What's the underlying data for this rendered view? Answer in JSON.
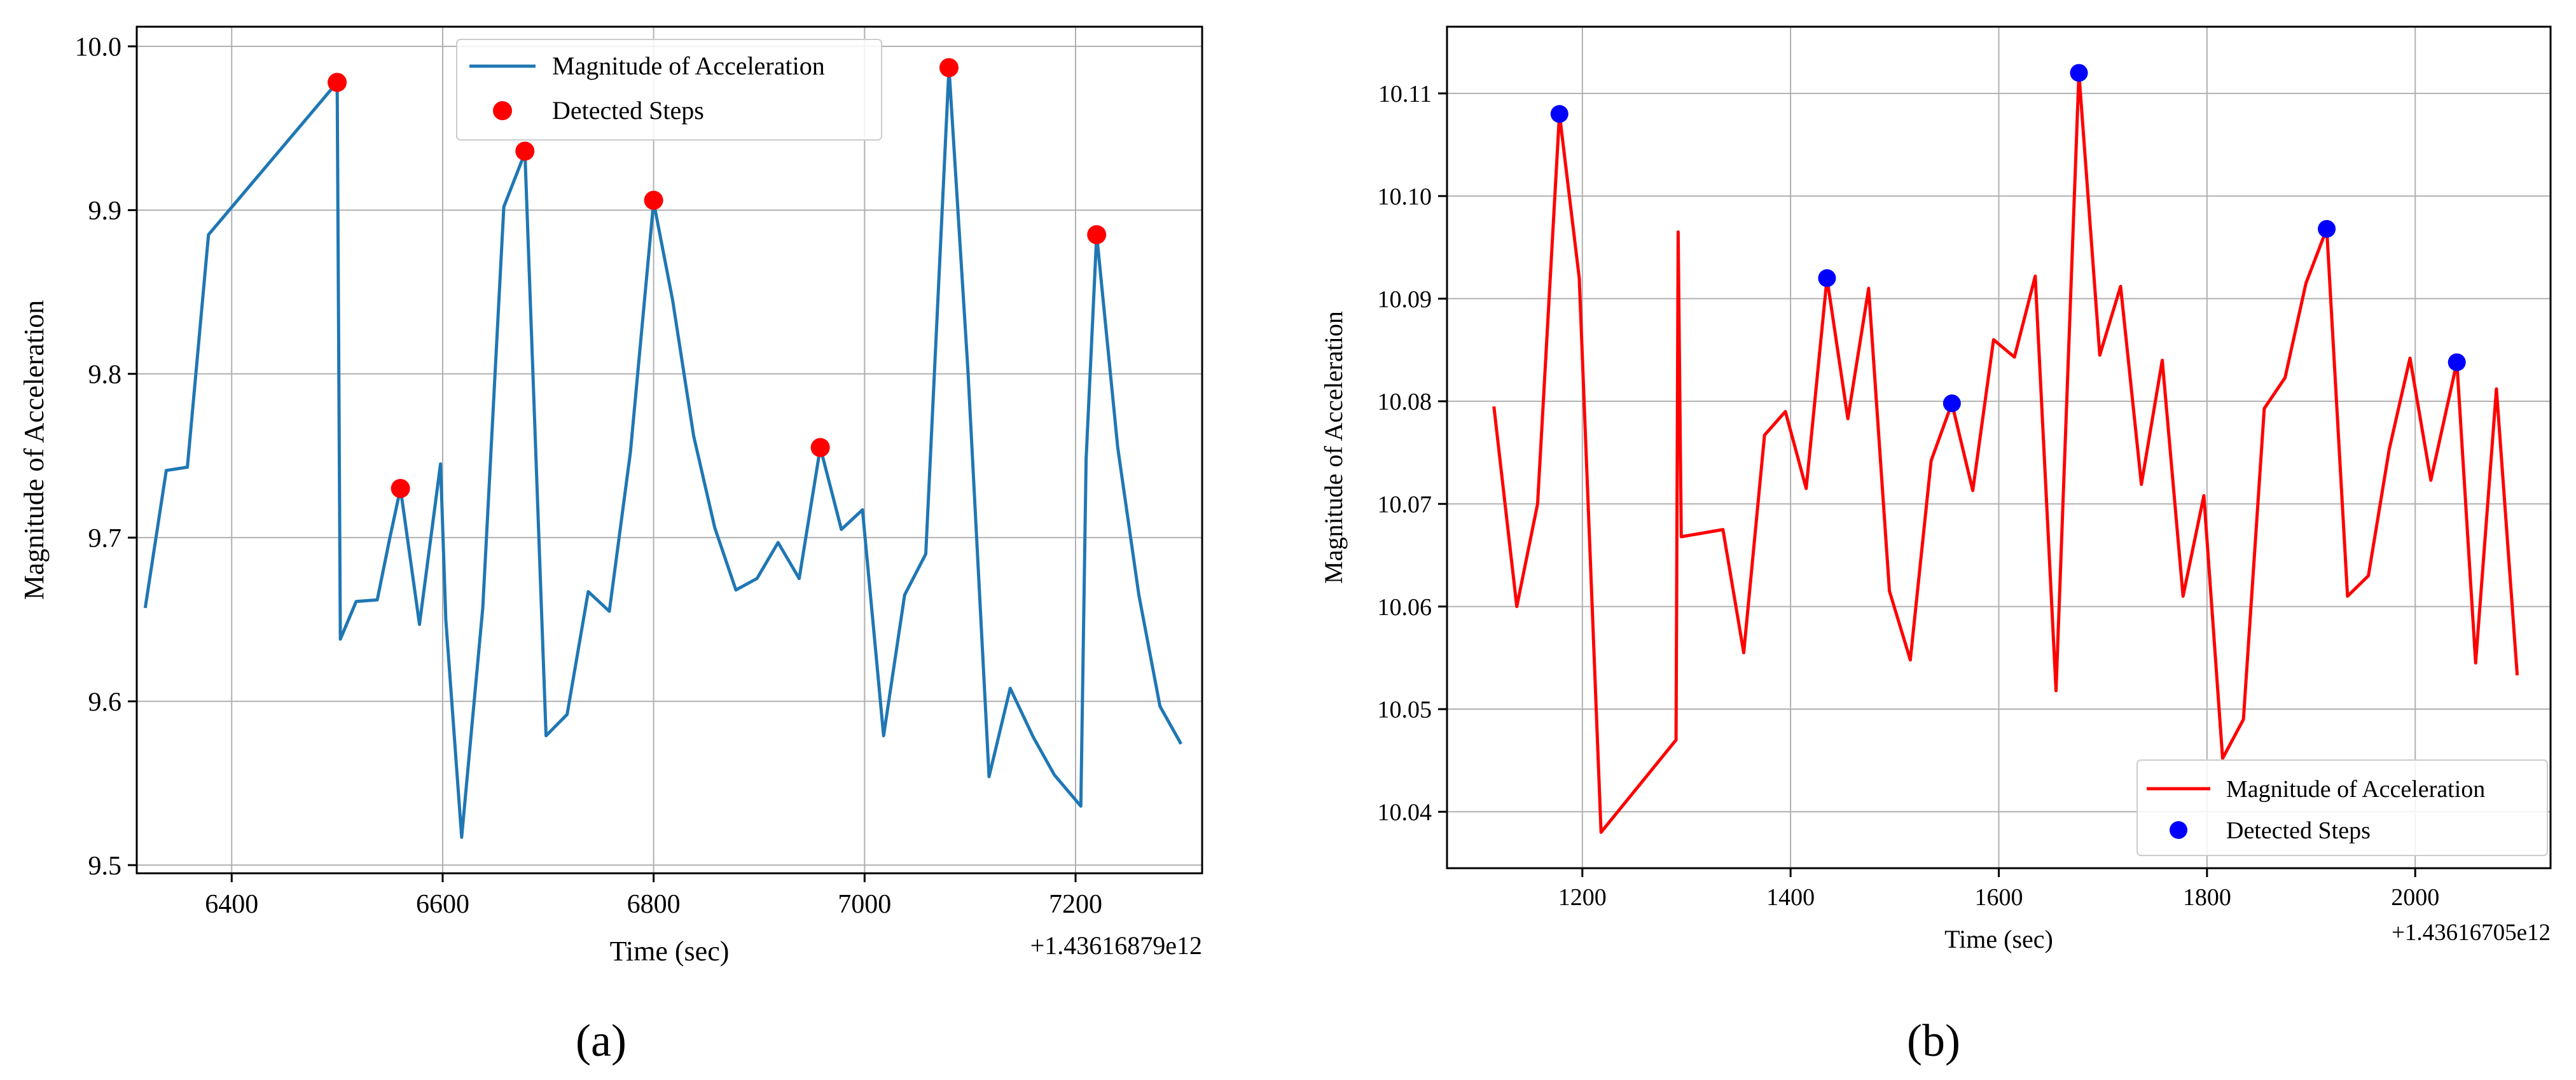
{
  "chart_data": [
    {
      "type": "line",
      "panel_label": "(a)",
      "xlabel": "Time (sec)",
      "ylabel": "Magnitude of Acceleration",
      "x_offset_label": "+1.43616879e12",
      "xlim": [
        6310,
        7320
      ],
      "ylim": [
        9.495,
        10.012
      ],
      "xticks": [
        6400,
        6600,
        6800,
        7000,
        7200
      ],
      "yticks": [
        9.5,
        9.6,
        9.7,
        9.8,
        9.9,
        10.0
      ],
      "ytick_labels": [
        "9.5",
        "9.6",
        "9.7",
        "9.8",
        "9.9",
        "10.0"
      ],
      "grid": true,
      "legend": {
        "position": "upper-center",
        "entries": [
          {
            "label": "Magnitude of Acceleration",
            "kind": "line"
          },
          {
            "label": "Detected Steps",
            "kind": "marker"
          }
        ]
      },
      "series": [
        {
          "name": "Magnitude of Acceleration",
          "color": "#1f77b4",
          "x": [
            6318,
            6338,
            6358,
            6378,
            6500,
            6503,
            6518,
            6538,
            6550,
            6560,
            6578,
            6598,
            6603,
            6618,
            6638,
            6658,
            6678,
            6698,
            6718,
            6738,
            6758,
            6778,
            6800,
            6818,
            6838,
            6858,
            6878,
            6898,
            6918,
            6938,
            6958,
            6978,
            6998,
            7018,
            7038,
            7058,
            7080,
            7098,
            7118,
            7138,
            7160,
            7180,
            7205,
            7210,
            7220,
            7240,
            7260,
            7280,
            7300
          ],
          "y": [
            9.657,
            9.741,
            9.743,
            9.885,
            9.978,
            9.638,
            9.661,
            9.662,
            9.7,
            9.73,
            9.647,
            9.745,
            9.65,
            9.517,
            9.657,
            9.902,
            9.935,
            9.579,
            9.592,
            9.667,
            9.655,
            9.752,
            9.905,
            9.845,
            9.762,
            9.706,
            9.668,
            9.675,
            9.697,
            9.675,
            9.755,
            9.705,
            9.717,
            9.579,
            9.665,
            9.69,
            9.987,
            9.802,
            9.554,
            9.608,
            9.578,
            9.555,
            9.536,
            9.748,
            9.885,
            9.755,
            9.665,
            9.597,
            9.574
          ]
        },
        {
          "name": "Detected Steps",
          "color": "#ff0000",
          "x": [
            6500,
            6560,
            6678,
            6800,
            6958,
            7080,
            7220
          ],
          "y": [
            9.978,
            9.73,
            9.936,
            9.906,
            9.755,
            9.987,
            9.885
          ]
        }
      ]
    },
    {
      "type": "line",
      "panel_label": "(b)",
      "xlabel": "Time (sec)",
      "ylabel": "Magnitude of Acceleration",
      "x_offset_label": "+1.43616705e12",
      "xlim": [
        1070,
        2130
      ],
      "ylim": [
        10.0345,
        10.1165
      ],
      "xticks": [
        1200,
        1400,
        1600,
        1800,
        2000
      ],
      "yticks": [
        10.04,
        10.05,
        10.06,
        10.07,
        10.08,
        10.09,
        10.1,
        10.11
      ],
      "ytick_labels": [
        "10.04",
        "10.05",
        "10.06",
        "10.07",
        "10.08",
        "10.09",
        "10.10",
        "10.11"
      ],
      "grid": true,
      "legend": {
        "position": "lower-right",
        "entries": [
          {
            "label": "Magnitude of Acceleration",
            "kind": "line"
          },
          {
            "label": "Detected Steps",
            "kind": "marker"
          }
        ]
      },
      "series": [
        {
          "name": "Magnitude of Acceleration",
          "color": "#ff0000",
          "x": [
            1115,
            1137,
            1157,
            1178,
            1197,
            1218,
            1290,
            1292,
            1295,
            1335,
            1355,
            1375,
            1395,
            1415,
            1435,
            1455,
            1475,
            1495,
            1515,
            1535,
            1555,
            1575,
            1595,
            1615,
            1635,
            1655,
            1677,
            1697,
            1717,
            1737,
            1757,
            1777,
            1797,
            1815,
            1835,
            1855,
            1875,
            1895,
            1915,
            1935,
            1955,
            1975,
            1995,
            2015,
            2040,
            2058,
            2078,
            2098
          ],
          "y": [
            10.0795,
            10.06,
            10.07,
            10.108,
            10.092,
            10.038,
            10.047,
            10.0965,
            10.0668,
            10.0675,
            10.0555,
            10.0767,
            10.079,
            10.0715,
            10.092,
            10.0783,
            10.091,
            10.0615,
            10.0548,
            10.0742,
            10.0798,
            10.0713,
            10.086,
            10.0843,
            10.0922,
            10.0518,
            10.112,
            10.0845,
            10.0912,
            10.0719,
            10.084,
            10.061,
            10.0708,
            10.0452,
            10.049,
            10.0793,
            10.0823,
            10.0915,
            10.0968,
            10.061,
            10.063,
            10.0753,
            10.0842,
            10.0723,
            10.0838,
            10.0545,
            10.0812,
            10.0533
          ]
        },
        {
          "name": "Detected Steps",
          "color": "#0000ff",
          "x": [
            1178,
            1435,
            1555,
            1677,
            1915,
            2040
          ],
          "y": [
            10.108,
            10.092,
            10.0798,
            10.112,
            10.0968,
            10.0838
          ]
        }
      ]
    }
  ]
}
